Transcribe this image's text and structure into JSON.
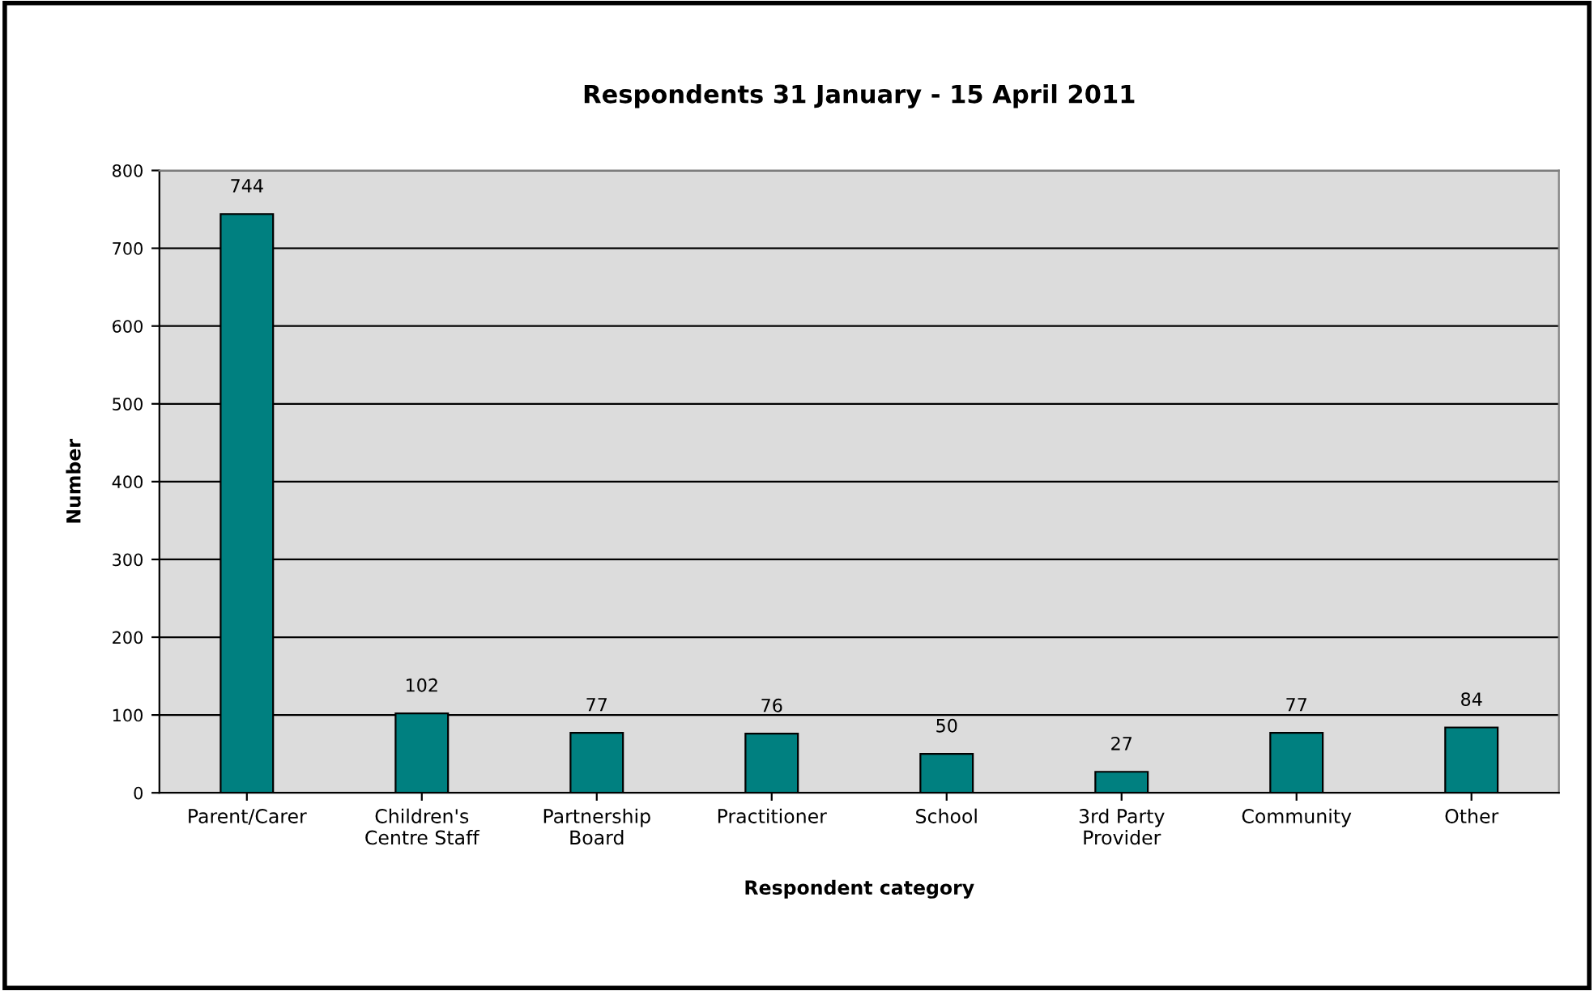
{
  "chart_data": {
    "type": "bar",
    "title": "Respondents 31 January - 15 April 2011",
    "xlabel": "Respondent category",
    "ylabel": "Number",
    "categories": [
      "Parent/Carer",
      "Children's\nCentre Staff",
      "Partnership\nBoard",
      "Practitioner",
      "School",
      "3rd Party\nProvider",
      "Community",
      "Other"
    ],
    "values": [
      744,
      102,
      77,
      76,
      50,
      27,
      77,
      84
    ],
    "color": "#008080",
    "ylim": [
      0,
      800
    ],
    "yticks": [
      0,
      100,
      200,
      300,
      400,
      500,
      600,
      700,
      800
    ],
    "grid": "y",
    "data_labels": true,
    "legend": false
  }
}
